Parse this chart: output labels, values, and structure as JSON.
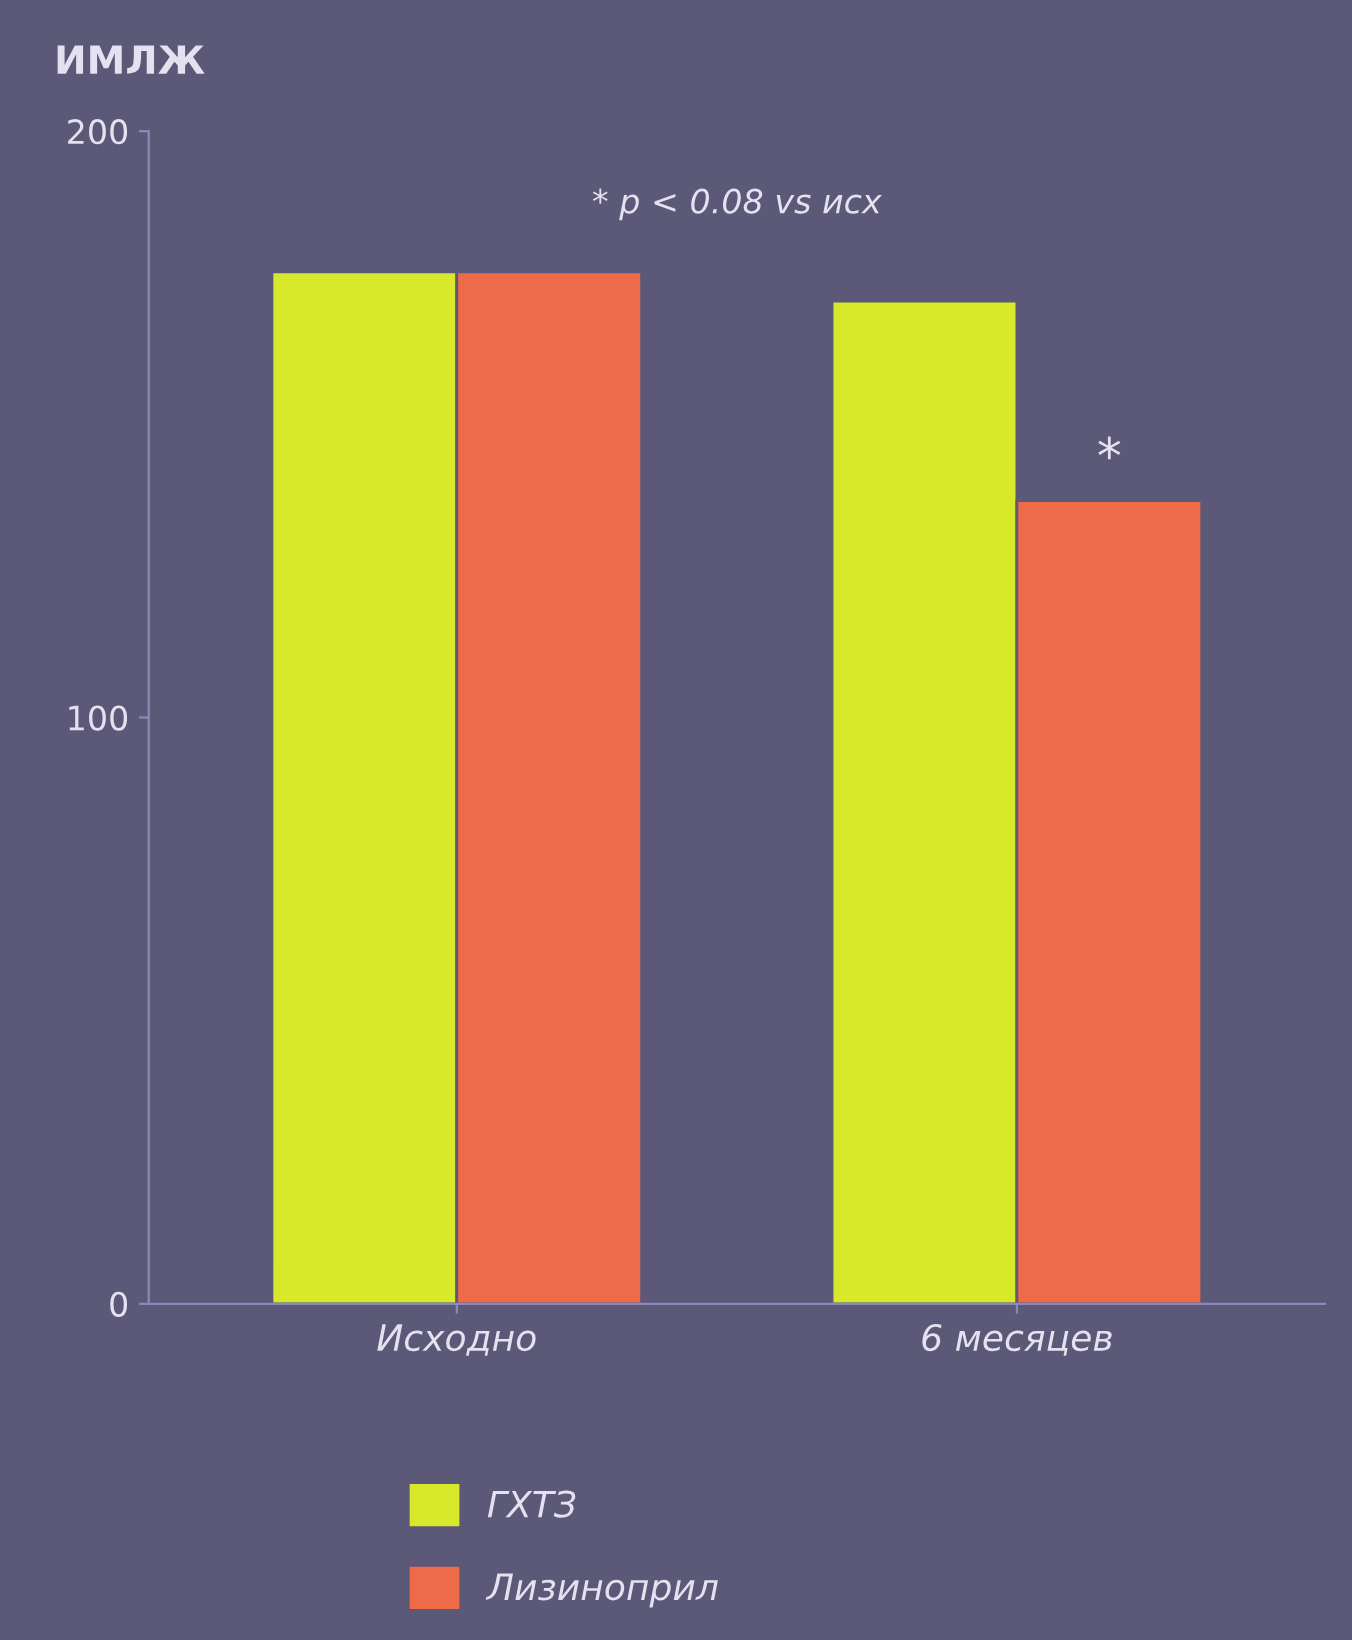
{
  "chart_data": {
    "type": "bar",
    "ylabel": "ИМЛЖ",
    "categories": [
      "Исходно",
      "6 месяцев"
    ],
    "series": [
      {
        "name": "ГХТЗ",
        "color": "#d8e82a",
        "values": [
          176,
          171
        ]
      },
      {
        "name": "Лизиноприл",
        "color": "#ee6a48",
        "values": [
          176,
          137
        ]
      }
    ],
    "ylim": [
      0,
      200
    ],
    "yticks": [
      0,
      100,
      200
    ],
    "grid": false,
    "legend": "bottom",
    "annotations": [
      "* p < 0.08 vs исх",
      {
        "text": "*",
        "x": "6 месяцев",
        "y": 137
      }
    ]
  }
}
